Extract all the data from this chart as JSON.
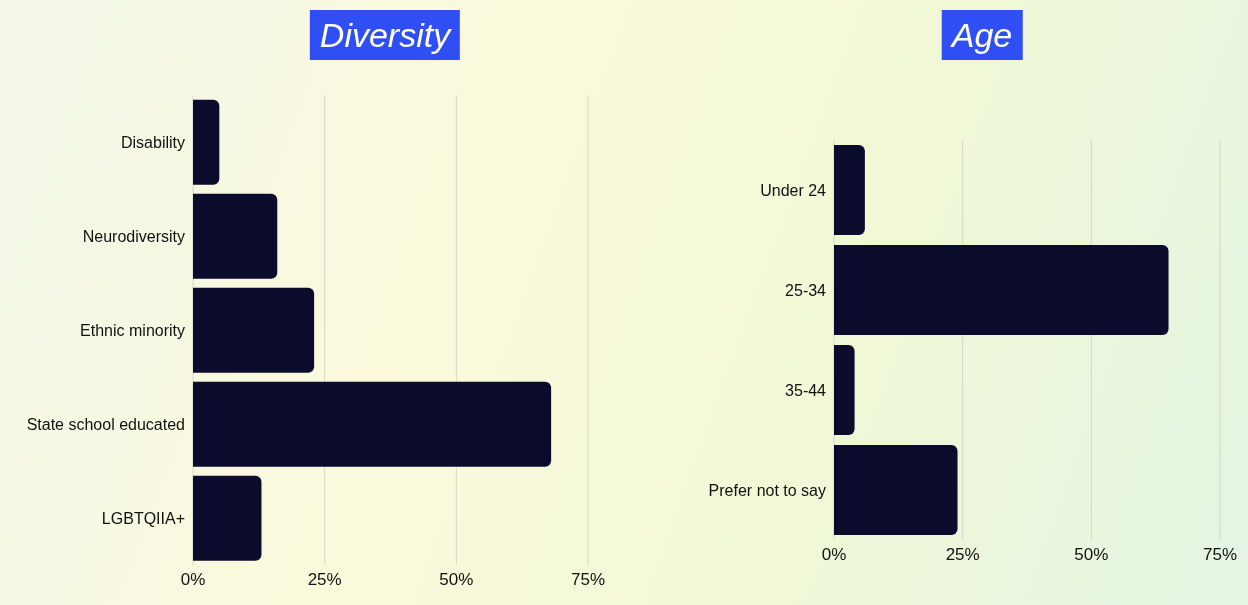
{
  "chart_data": [
    {
      "type": "bar",
      "orientation": "horizontal",
      "title": "Diversity",
      "categories": [
        "Disability",
        "Neurodiversity",
        "Ethnic minority",
        "State school educated",
        "LGBTQIIA+"
      ],
      "values": [
        5,
        16,
        23,
        68,
        13
      ],
      "color": "#0b0b2c",
      "xlim": [
        0,
        75
      ],
      "xticks": [
        {
          "value": 0,
          "label": "0%"
        },
        {
          "value": 25,
          "label": "25%"
        },
        {
          "value": 50,
          "label": "50%"
        },
        {
          "value": 75,
          "label": "75%"
        }
      ],
      "grid": "x",
      "legend": false
    },
    {
      "type": "bar",
      "orientation": "horizontal",
      "title": "Age",
      "categories": [
        "Under  24",
        "25-34",
        "35-44",
        "Prefer not to say"
      ],
      "values": [
        6,
        65,
        4,
        24
      ],
      "color": "#0b0b2c",
      "xlim": [
        0,
        75
      ],
      "xticks": [
        {
          "value": 0,
          "label": "0%"
        },
        {
          "value": 25,
          "label": "25%"
        },
        {
          "value": 50,
          "label": "50%"
        },
        {
          "value": 75,
          "label": "75%"
        }
      ],
      "grid": "x",
      "legend": false
    }
  ]
}
